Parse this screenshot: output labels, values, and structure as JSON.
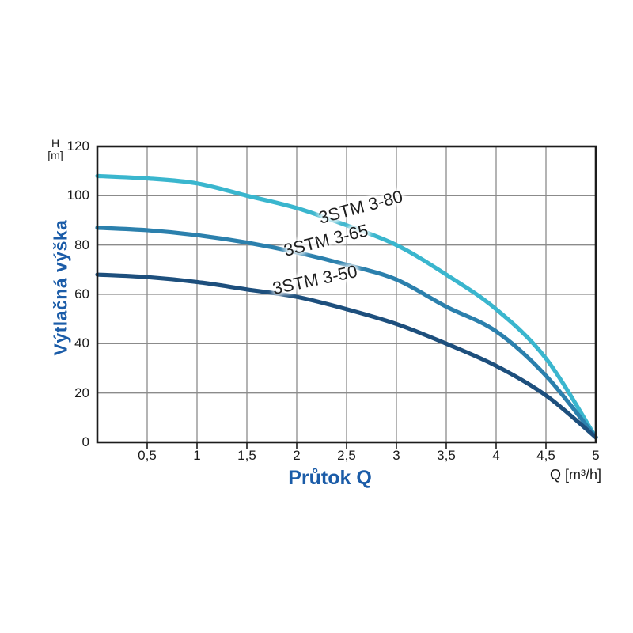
{
  "axis": {
    "y_unit_line1": "H",
    "y_unit_line2": "[m]",
    "y_title": "Výtlačná výška",
    "x_title": "Průtok Q",
    "x_unit": "Q [m³/h]"
  },
  "colors": {
    "axis_text": "#1a1a1a",
    "blue_label": "#1b5ca8",
    "grid": "#8b8b8b",
    "plot_border": "#1c1c1c",
    "series": [
      "#3ab6ce",
      "#2b80ad",
      "#1d4f7d"
    ]
  },
  "chart_data": {
    "type": "line",
    "x": [
      0,
      0.5,
      1,
      1.5,
      2,
      2.5,
      3,
      3.5,
      4,
      4.5,
      5
    ],
    "x_tick_labels": [
      "0,5",
      "1",
      "1,5",
      "2",
      "2,5",
      "3",
      "3,5",
      "4",
      "4,5",
      "5"
    ],
    "y_ticks": [
      120,
      100,
      80,
      60,
      40,
      20,
      0
    ],
    "series": [
      {
        "name": "3STM 3-80",
        "color": "#3ab6ce",
        "values": [
          108,
          107,
          105,
          100,
          95,
          88,
          80,
          68,
          54,
          34,
          2
        ]
      },
      {
        "name": "3STM 3-65",
        "color": "#2b80ad",
        "values": [
          87,
          86,
          84,
          81,
          77,
          72,
          66,
          55,
          45,
          27,
          2
        ]
      },
      {
        "name": "3STM 3-50",
        "color": "#1d4f7d",
        "values": [
          68,
          67,
          65,
          62,
          59,
          54,
          48,
          40,
          31,
          19,
          2
        ]
      }
    ],
    "title": "",
    "xlabel": "Průtok Q",
    "x_unit": "Q [m³/h]",
    "ylabel": "Výtlačná výška",
    "y_unit": "H [m]",
    "xlim": [
      0,
      5
    ],
    "ylim": [
      0,
      120
    ],
    "grid": true,
    "legend_position": "inline-curve-labels"
  }
}
